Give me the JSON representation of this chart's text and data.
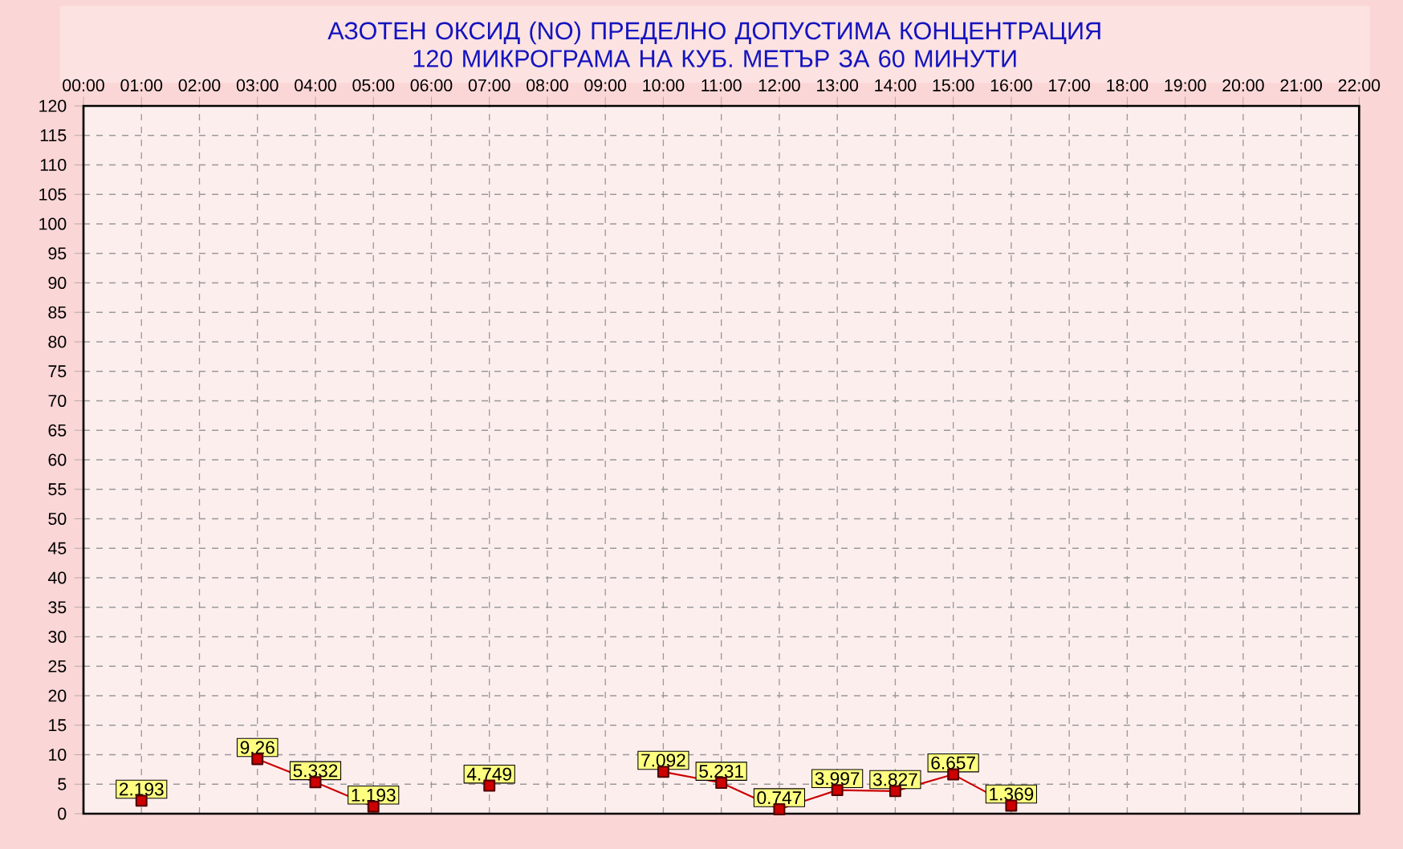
{
  "chart_data": {
    "type": "line",
    "title": "АЗОТЕН ОКСИД   (NO)     ПРЕДЕЛНО ДОПУСТИМА КОНЦЕНТРАЦИЯ 120 МИКРОГРАМА  НА КУБ. МЕТЪР ЗА 60 МИНУТИ",
    "x": [
      1,
      2,
      3,
      4,
      5,
      6,
      7,
      8,
      9,
      10,
      11,
      12,
      13,
      14,
      15,
      16
    ],
    "values": [
      2.193,
      null,
      9.26,
      5.332,
      1.193,
      null,
      4.749,
      null,
      null,
      7.092,
      5.231,
      0.747,
      3.997,
      3.827,
      6.657,
      1.369
    ],
    "color": "#cc0000",
    "marker": "square",
    "line_style": "solid",
    "grid": true,
    "data_labels": true,
    "xlim": [
      0,
      22
    ],
    "xticks": [
      {
        "value": 0,
        "label": "00:00"
      },
      {
        "value": 1,
        "label": "01:00"
      },
      {
        "value": 2,
        "label": "02:00"
      },
      {
        "value": 3,
        "label": "03:00"
      },
      {
        "value": 4,
        "label": "04:00"
      },
      {
        "value": 5,
        "label": "05:00"
      },
      {
        "value": 6,
        "label": "06:00"
      },
      {
        "value": 7,
        "label": "07:00"
      },
      {
        "value": 8,
        "label": "08:00"
      },
      {
        "value": 9,
        "label": "09:00"
      },
      {
        "value": 10,
        "label": "10:00"
      },
      {
        "value": 11,
        "label": "11:00"
      },
      {
        "value": 12,
        "label": "12:00"
      },
      {
        "value": 13,
        "label": "13:00"
      },
      {
        "value": 14,
        "label": "14:00"
      },
      {
        "value": 15,
        "label": "15:00"
      },
      {
        "value": 16,
        "label": "16:00"
      },
      {
        "value": 17,
        "label": "17:00"
      },
      {
        "value": 18,
        "label": "18:00"
      },
      {
        "value": 19,
        "label": "19:00"
      },
      {
        "value": 20,
        "label": "20:00"
      },
      {
        "value": 21,
        "label": "21:00"
      },
      {
        "value": 22,
        "label": "22:00"
      }
    ],
    "ylim": [
      0,
      120
    ],
    "yticks": [
      0,
      5,
      10,
      15,
      20,
      25,
      30,
      35,
      40,
      45,
      50,
      55,
      60,
      65,
      70,
      75,
      80,
      85,
      90,
      95,
      100,
      105,
      110,
      115,
      120
    ]
  }
}
